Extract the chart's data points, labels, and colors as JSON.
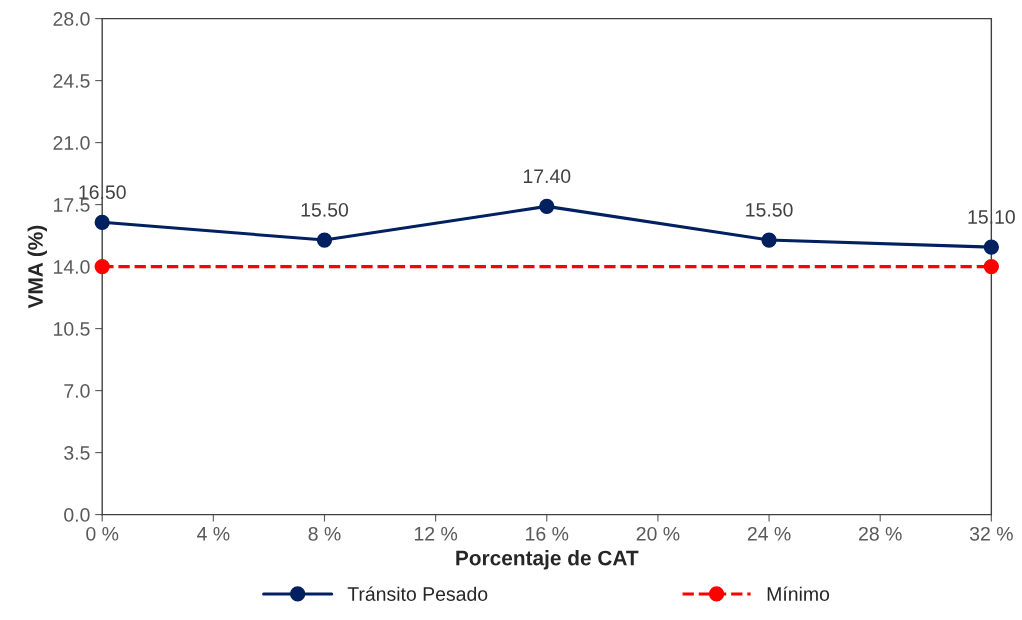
{
  "chart_data": {
    "type": "line",
    "xlabel": "Porcentaje de CAT",
    "ylabel": "VMA (%)",
    "xlim": [
      0,
      32
    ],
    "xticks": [
      {
        "value": 0,
        "label": "0 %"
      },
      {
        "value": 4,
        "label": "4 %"
      },
      {
        "value": 8,
        "label": "8 %"
      },
      {
        "value": 12,
        "label": "12 %"
      },
      {
        "value": 16,
        "label": "16 %"
      },
      {
        "value": 20,
        "label": "20 %"
      },
      {
        "value": 24,
        "label": "24 %"
      },
      {
        "value": 28,
        "label": "28 %"
      },
      {
        "value": 32,
        "label": "32 %"
      }
    ],
    "ylim": [
      0,
      28
    ],
    "yticks": [
      {
        "value": 0,
        "label": "0.0"
      },
      {
        "value": 3.5,
        "label": "3.5"
      },
      {
        "value": 7,
        "label": "7.0"
      },
      {
        "value": 10.5,
        "label": "10.5"
      },
      {
        "value": 14,
        "label": "14.0"
      },
      {
        "value": 17.5,
        "label": "17.5"
      },
      {
        "value": 21,
        "label": "21.0"
      },
      {
        "value": 24.5,
        "label": "24.5"
      },
      {
        "value": 28,
        "label": "28.0"
      }
    ],
    "grid": false,
    "legend": "bottom",
    "series": [
      {
        "name": "Tránsito Pesado",
        "color": "#002060",
        "x": [
          0,
          8,
          16,
          24,
          32
        ],
        "values": [
          16.5,
          15.5,
          17.4,
          15.5,
          15.1
        ],
        "marker": "circle",
        "line_style": "solid",
        "value_labels": [
          "16.50",
          "15.50",
          "17.40",
          "15.50",
          "15.10"
        ]
      },
      {
        "name": "Mínimo",
        "color": "#ff0000",
        "x": [
          0,
          32
        ],
        "values": [
          14,
          14
        ],
        "marker": "circle",
        "line_style": "dashed"
      }
    ]
  }
}
